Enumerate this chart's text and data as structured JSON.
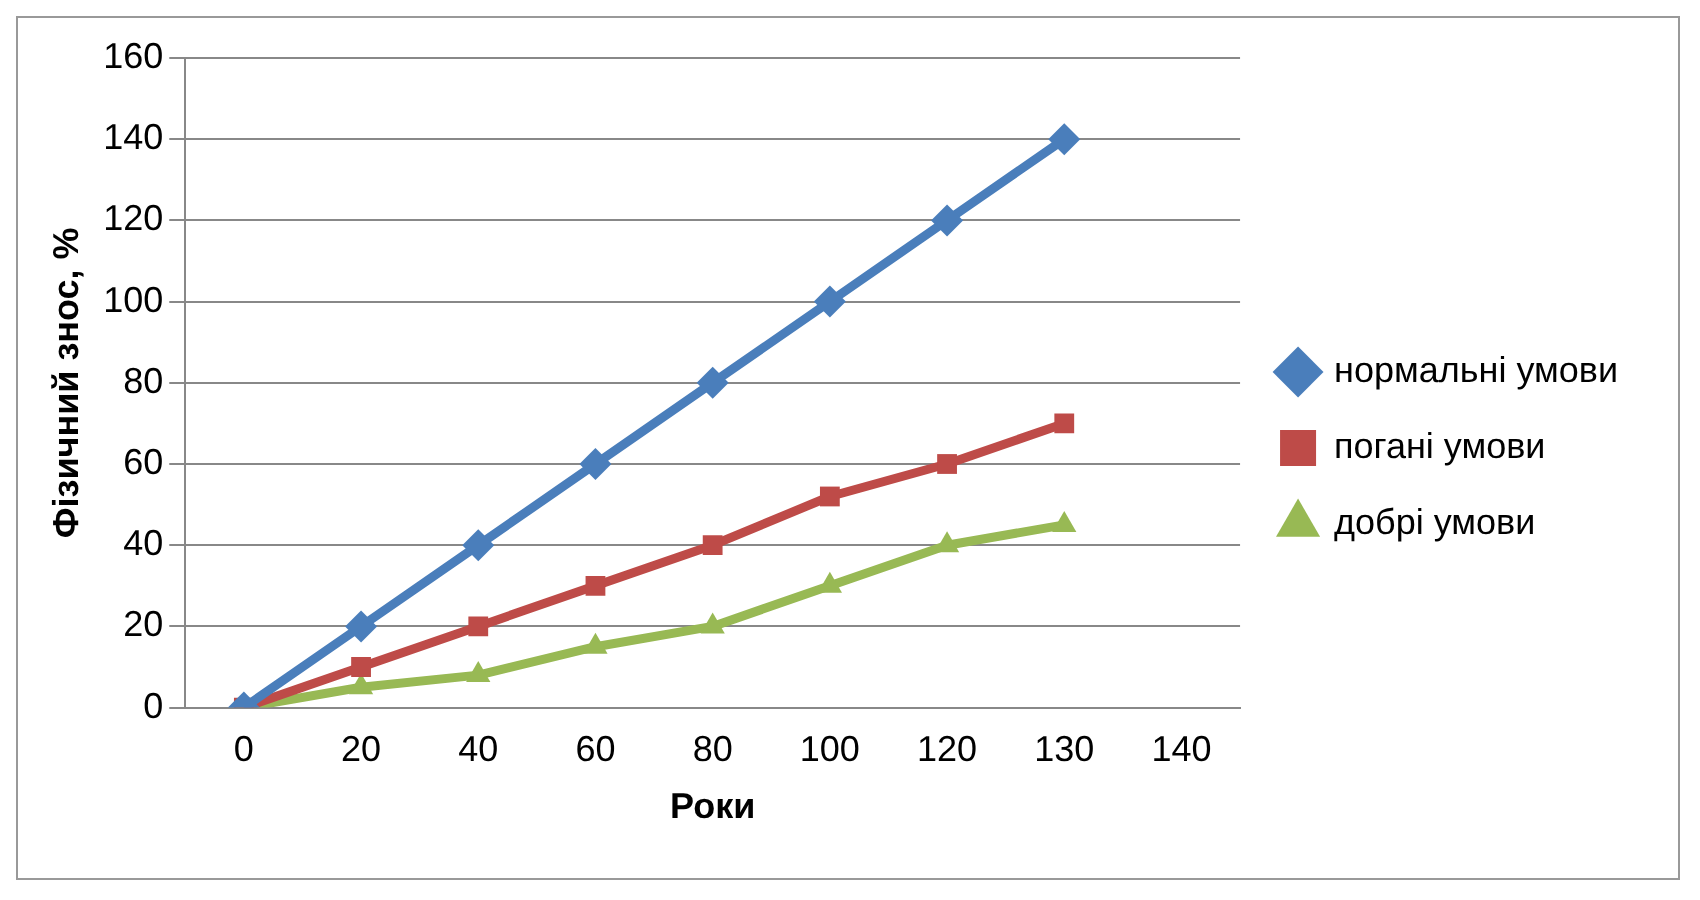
{
  "chart_data": {
    "type": "line",
    "xlabel": "Роки",
    "ylabel": "Фізичний знос, %",
    "categories": [
      "0",
      "20",
      "40",
      "60",
      "80",
      "100",
      "120",
      "130",
      "140"
    ],
    "ylim": [
      0,
      160
    ],
    "yticks": [
      0,
      20,
      40,
      60,
      80,
      100,
      120,
      140,
      160
    ],
    "grid": "y",
    "legend": "right",
    "line_style": "solid",
    "series": [
      {
        "name": "нормальні умови",
        "color": "#4a7ebb",
        "marker": "diamond",
        "values": [
          0,
          20,
          40,
          60,
          80,
          100,
          120,
          140,
          null
        ]
      },
      {
        "name": "погані умови",
        "color": "#be4b48",
        "marker": "square",
        "values": [
          0,
          10,
          20,
          30,
          40,
          52,
          60,
          70,
          null
        ]
      },
      {
        "name": "добрі умови",
        "color": "#98b954",
        "marker": "triangle",
        "values": [
          0,
          5,
          8,
          15,
          20,
          30,
          40,
          45,
          null
        ]
      }
    ]
  }
}
